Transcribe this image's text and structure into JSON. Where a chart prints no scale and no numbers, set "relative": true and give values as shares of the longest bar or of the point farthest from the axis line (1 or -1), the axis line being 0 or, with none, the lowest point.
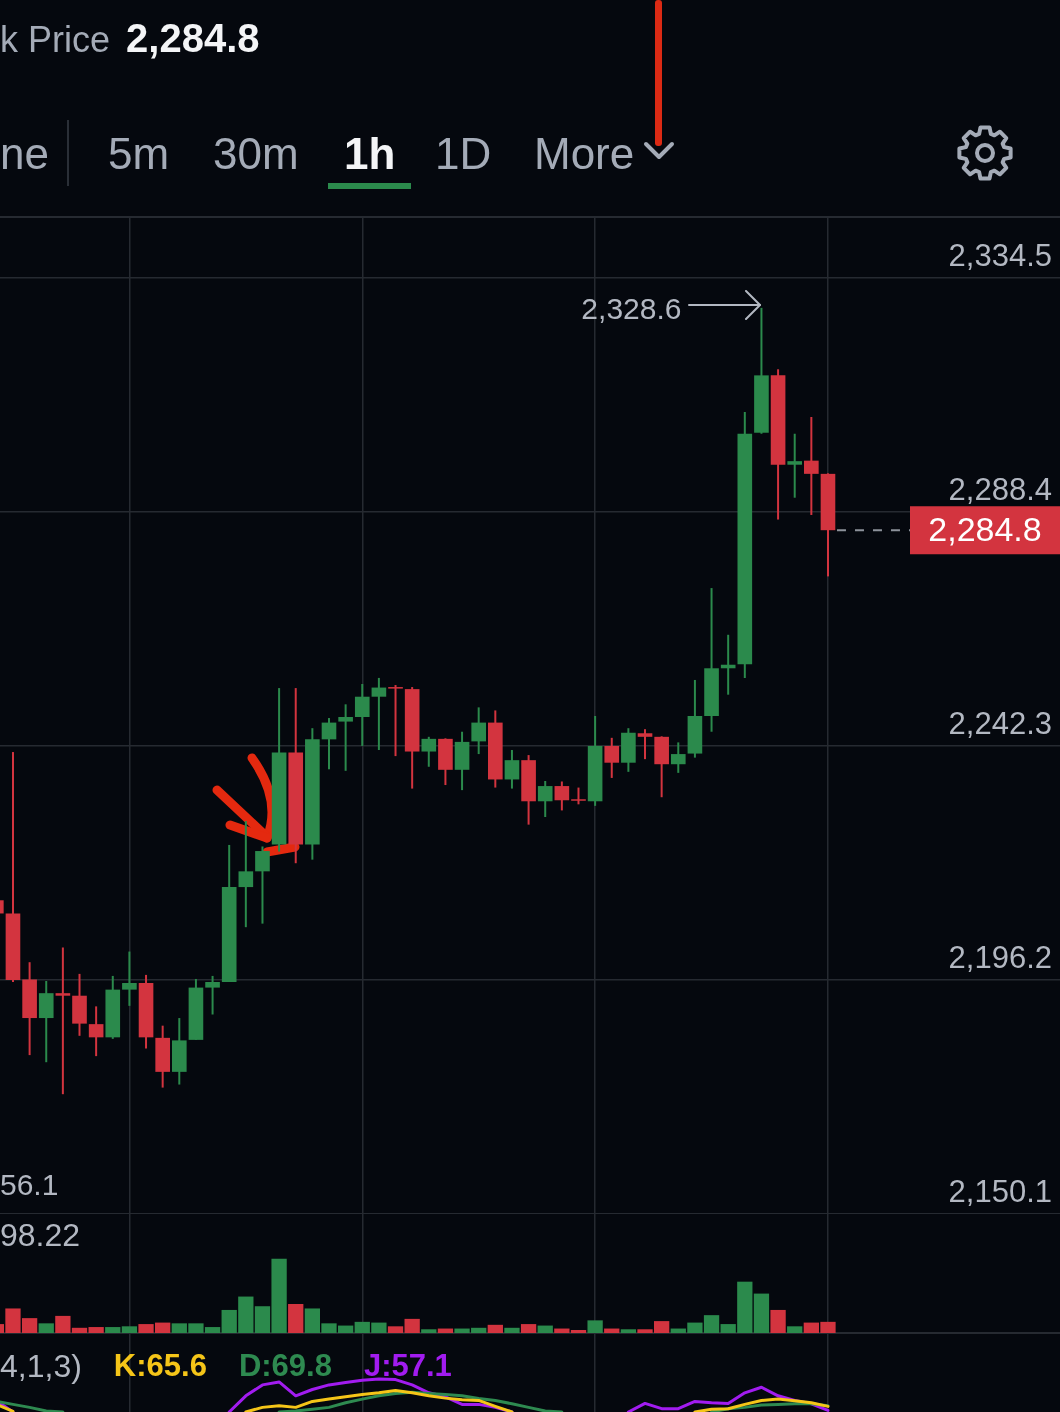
{
  "chart_data": [
    {
      "type": "candlestick",
      "title": "k Price",
      "subtitle": "2,284.8",
      "categories": [
        null,
        null,
        null,
        null,
        null,
        null,
        null,
        null,
        null,
        null,
        null,
        null,
        null,
        null,
        null,
        null,
        null,
        null,
        null,
        null,
        null,
        null,
        null,
        null,
        null,
        null,
        null,
        null,
        null,
        null,
        null,
        null,
        null,
        null,
        null,
        null,
        null,
        null,
        null,
        null,
        null,
        null,
        null,
        null,
        null,
        null,
        null,
        null,
        null,
        null,
        null
      ],
      "ohlc": [
        [
          2211.9,
          2211.9,
          2209.3,
          2209.3
        ],
        [
          2209.3,
          2241.1,
          2195.8,
          2196.2
        ],
        [
          2196.3,
          2199.7,
          2181.4,
          2188.7
        ],
        [
          2188.7,
          2196.0,
          2180.0,
          2193.6
        ],
        [
          2193.6,
          2202.6,
          2173.7,
          2193.1
        ],
        [
          2193.1,
          2197.4,
          2185.2,
          2187.6
        ],
        [
          2187.5,
          2191.0,
          2181.2,
          2184.9
        ],
        [
          2184.9,
          2197.0,
          2184.6,
          2194.3
        ],
        [
          2194.3,
          2201.8,
          2191.1,
          2195.6
        ],
        [
          2195.6,
          2197.2,
          2182.7,
          2184.9
        ],
        [
          2184.8,
          2187.2,
          2175.0,
          2178.1
        ],
        [
          2178.1,
          2188.7,
          2175.6,
          2184.3
        ],
        [
          2184.4,
          2196.4,
          2184.4,
          2194.7
        ],
        [
          2194.7,
          2197.0,
          2189.4,
          2195.8
        ],
        [
          2195.8,
          2222.8,
          2195.8,
          2214.5
        ],
        [
          2214.5,
          2227.5,
          2206.6,
          2217.6
        ],
        [
          2217.6,
          2222.5,
          2207.3,
          2221.6
        ],
        [
          2222.9,
          2253.7,
          2221.5,
          2241.0
        ],
        [
          2241.0,
          2253.7,
          2219.2,
          2222.9
        ],
        [
          2222.9,
          2245.8,
          2219.9,
          2243.6
        ],
        [
          2243.6,
          2247.8,
          2237.7,
          2246.9
        ],
        [
          2247.1,
          2250.5,
          2237.4,
          2248.0
        ],
        [
          2248.0,
          2254.5,
          2242.3,
          2252.0
        ],
        [
          2252.0,
          2255.7,
          2241.5,
          2253.8
        ],
        [
          2253.9,
          2254.3,
          2240.3,
          2253.6
        ],
        [
          2253.5,
          2253.9,
          2233.9,
          2241.2
        ],
        [
          2241.2,
          2244.1,
          2238.2,
          2243.7
        ],
        [
          2243.7,
          2243.8,
          2234.6,
          2237.6
        ],
        [
          2237.6,
          2245.1,
          2233.6,
          2243.1
        ],
        [
          2243.2,
          2249.9,
          2240.7,
          2246.9
        ],
        [
          2246.9,
          2249.3,
          2234.1,
          2235.7
        ],
        [
          2235.7,
          2241.5,
          2233.9,
          2239.5
        ],
        [
          2239.5,
          2240.5,
          2226.8,
          2231.4
        ],
        [
          2231.4,
          2235.4,
          2228.3,
          2234.4
        ],
        [
          2234.4,
          2235.3,
          2229.6,
          2231.6
        ],
        [
          2231.8,
          2234.1,
          2230.8,
          2231.6
        ],
        [
          2231.4,
          2248.2,
          2230.5,
          2242.3
        ],
        [
          2242.3,
          2243.9,
          2236.0,
          2239.0
        ],
        [
          2239.0,
          2245.8,
          2237.2,
          2244.9
        ],
        [
          2244.8,
          2245.6,
          2239.7,
          2244.1
        ],
        [
          2244.1,
          2244.2,
          2232.2,
          2238.7
        ],
        [
          2238.7,
          2243.0,
          2237.0,
          2240.7
        ],
        [
          2240.8,
          2255.3,
          2240.0,
          2248.2
        ],
        [
          2248.2,
          2273.4,
          2245.1,
          2257.6
        ],
        [
          2257.6,
          2264.2,
          2252.4,
          2258.3
        ],
        [
          2258.4,
          2308.1,
          2255.7,
          2303.8
        ],
        [
          2304.0,
          2328.6,
          2303.8,
          2315.3
        ],
        [
          2315.3,
          2316.5,
          2286.9,
          2297.7
        ],
        [
          2297.7,
          2303.8,
          2291.2,
          2298.4
        ],
        [
          2298.5,
          2307.1,
          2287.8,
          2295.9
        ],
        [
          2295.9,
          2296.0,
          2275.7,
          2284.8
        ]
      ],
      "colors": [
        "#d3343f",
        "#d3343f",
        "#d3343f",
        "#2b8a4c",
        "#d3343f",
        "#d3343f",
        "#d3343f",
        "#2b8a4c",
        "#2b8a4c",
        "#d3343f",
        "#d3343f",
        "#2b8a4c",
        "#2b8a4c",
        "#2b8a4c",
        "#2b8a4c",
        "#2b8a4c",
        "#2b8a4c",
        "#2b8a4c",
        "#d3343f",
        "#2b8a4c",
        "#2b8a4c",
        "#2b8a4c",
        "#2b8a4c",
        "#2b8a4c",
        "#d3343f",
        "#d3343f",
        "#2b8a4c",
        "#d3343f",
        "#2b8a4c",
        "#2b8a4c",
        "#d3343f",
        "#2b8a4c",
        "#d3343f",
        "#2b8a4c",
        "#d3343f",
        "#d3343f",
        "#2b8a4c",
        "#d3343f",
        "#2b8a4c",
        "#d3343f",
        "#d3343f",
        "#2b8a4c",
        "#2b8a4c",
        "#2b8a4c",
        "#2b8a4c",
        "#2b8a4c",
        "#2b8a4c",
        "#d3343f",
        "#2b8a4c",
        "#d3343f",
        "#d3343f"
      ],
      "ylim": [
        2150.1,
        2346.3
      ],
      "yticks": [
        {
          "value": 2150.1,
          "label": "2,150.1"
        },
        {
          "value": 2196.2,
          "label": "2,196.2"
        },
        {
          "value": 2242.3,
          "label": "2,242.3"
        },
        {
          "value": 2288.4,
          "label": "2,288.4"
        },
        {
          "value": 2334.5,
          "label": "2,334.5"
        }
      ],
      "grid": true,
      "ref_lines": [
        {
          "axis": "y",
          "value": 2284.8,
          "label": "2,284.8",
          "color": "#8d929b",
          "line_style": "dashed"
        }
      ],
      "annotations": [
        "ne",
        "5m",
        "30m",
        "1h",
        "1D",
        "More",
        "2,328.6",
        "56.1"
      ]
    },
    {
      "type": "bar",
      "relative": true,
      "grid": true,
      "categories": [
        null,
        null,
        null,
        null,
        null,
        null,
        null,
        null,
        null,
        null,
        null,
        null,
        null,
        null,
        null,
        null,
        null,
        null,
        null,
        null,
        null,
        null,
        null,
        null,
        null,
        null,
        null,
        null,
        null,
        null,
        null,
        null,
        null,
        null,
        null,
        null,
        null,
        null,
        null,
        null,
        null,
        null,
        null,
        null,
        null,
        null,
        null,
        null,
        null,
        null,
        null
      ],
      "values": [
        0.12,
        0.33,
        0.2,
        0.13,
        0.23,
        0.07,
        0.08,
        0.08,
        0.09,
        0.12,
        0.14,
        0.13,
        0.13,
        0.08,
        0.31,
        0.49,
        0.36,
        1,
        0.39,
        0.33,
        0.13,
        0.1,
        0.15,
        0.14,
        0.09,
        0.19,
        0.05,
        0.06,
        0.06,
        0.07,
        0.11,
        0.07,
        0.12,
        0.1,
        0.06,
        0.04,
        0.17,
        0.06,
        0.05,
        0.05,
        0.16,
        0.06,
        0.14,
        0.24,
        0.12,
        0.69,
        0.53,
        0.31,
        0.09,
        0.14,
        0.15
      ],
      "colors": [
        "#d3343f",
        "#d3343f",
        "#d3343f",
        "#2b8a4c",
        "#d3343f",
        "#d3343f",
        "#d3343f",
        "#2b8a4c",
        "#2b8a4c",
        "#d3343f",
        "#d3343f",
        "#2b8a4c",
        "#2b8a4c",
        "#2b8a4c",
        "#2b8a4c",
        "#2b8a4c",
        "#2b8a4c",
        "#2b8a4c",
        "#d3343f",
        "#2b8a4c",
        "#2b8a4c",
        "#2b8a4c",
        "#2b8a4c",
        "#2b8a4c",
        "#d3343f",
        "#d3343f",
        "#2b8a4c",
        "#d3343f",
        "#2b8a4c",
        "#2b8a4c",
        "#d3343f",
        "#2b8a4c",
        "#d3343f",
        "#2b8a4c",
        "#d3343f",
        "#d3343f",
        "#2b8a4c",
        "#d3343f",
        "#2b8a4c",
        "#d3343f",
        "#d3343f",
        "#2b8a4c",
        "#2b8a4c",
        "#2b8a4c",
        "#2b8a4c",
        "#2b8a4c",
        "#2b8a4c",
        "#d3343f",
        "#2b8a4c",
        "#d3343f",
        "#d3343f"
      ],
      "annotations": [
        "98.22"
      ]
    },
    {
      "type": "line",
      "relative": true,
      "grid": true,
      "title": "4,1,3)",
      "legend": "top left",
      "categories": [
        null,
        null,
        null,
        null,
        null,
        null,
        null,
        null,
        null,
        null,
        null,
        null,
        null,
        null,
        null,
        null,
        null,
        null,
        null,
        null,
        null,
        null,
        null,
        null,
        null,
        null,
        null,
        null,
        null,
        null,
        null,
        null,
        null,
        null,
        null,
        null,
        null,
        null,
        null,
        null,
        null,
        null,
        null,
        null,
        null,
        null,
        null,
        null,
        null,
        null,
        null
      ],
      "series": [
        {
          "name": "K:65.6",
          "color": "#f5c518",
          "values": [
            0.23,
            0.02,
            null,
            null,
            null,
            null,
            null,
            null,
            null,
            null,
            null,
            null,
            null,
            null,
            null,
            0,
            0.14,
            0.19,
            0.14,
            0.32,
            0.39,
            0.46,
            0.53,
            0.58,
            0.65,
            0.58,
            0.49,
            0.42,
            0.37,
            0.35,
            0.17,
            0,
            null,
            null,
            null,
            null,
            null,
            null,
            null,
            null,
            null,
            null,
            0,
            0.08,
            0.1,
            0.23,
            0.35,
            0.39,
            0.34,
            0.28,
            0.17
          ]
        },
        {
          "name": "D:69.8",
          "color": "#2e8a50",
          "values": [
            0.32,
            0.23,
            0.14,
            0.03,
            0,
            null,
            null,
            null,
            null,
            null,
            null,
            null,
            null,
            null,
            null,
            null,
            null,
            0,
            0.03,
            0.08,
            0.14,
            0.28,
            0.39,
            0.49,
            0.56,
            0.6,
            0.56,
            0.53,
            0.49,
            0.41,
            0.35,
            0.25,
            0.14,
            0.03,
            0,
            null,
            null,
            null,
            null,
            null,
            null,
            null,
            null,
            0,
            0.1,
            0.14,
            0.21,
            0.23,
            0.25,
            0.25,
            0.19
          ]
        },
        {
          "name": "J:57.1",
          "color": "#a21cf0",
          "values": [
            0.35,
            0,
            null,
            null,
            null,
            null,
            null,
            null,
            null,
            null,
            null,
            null,
            null,
            null,
            0,
            0.49,
            0.82,
            0.91,
            0.49,
            0.68,
            0.82,
            0.89,
            0.96,
            1,
            0.98,
            0.82,
            0.58,
            0.46,
            0.23,
            0.23,
            0.14,
            0,
            null,
            null,
            null,
            null,
            null,
            null,
            0,
            0.26,
            0.1,
            0.1,
            0.32,
            0.28,
            0.26,
            0.58,
            0.75,
            0.49,
            0.35,
            0.25,
            0.05
          ]
        }
      ]
    }
  ]
}
